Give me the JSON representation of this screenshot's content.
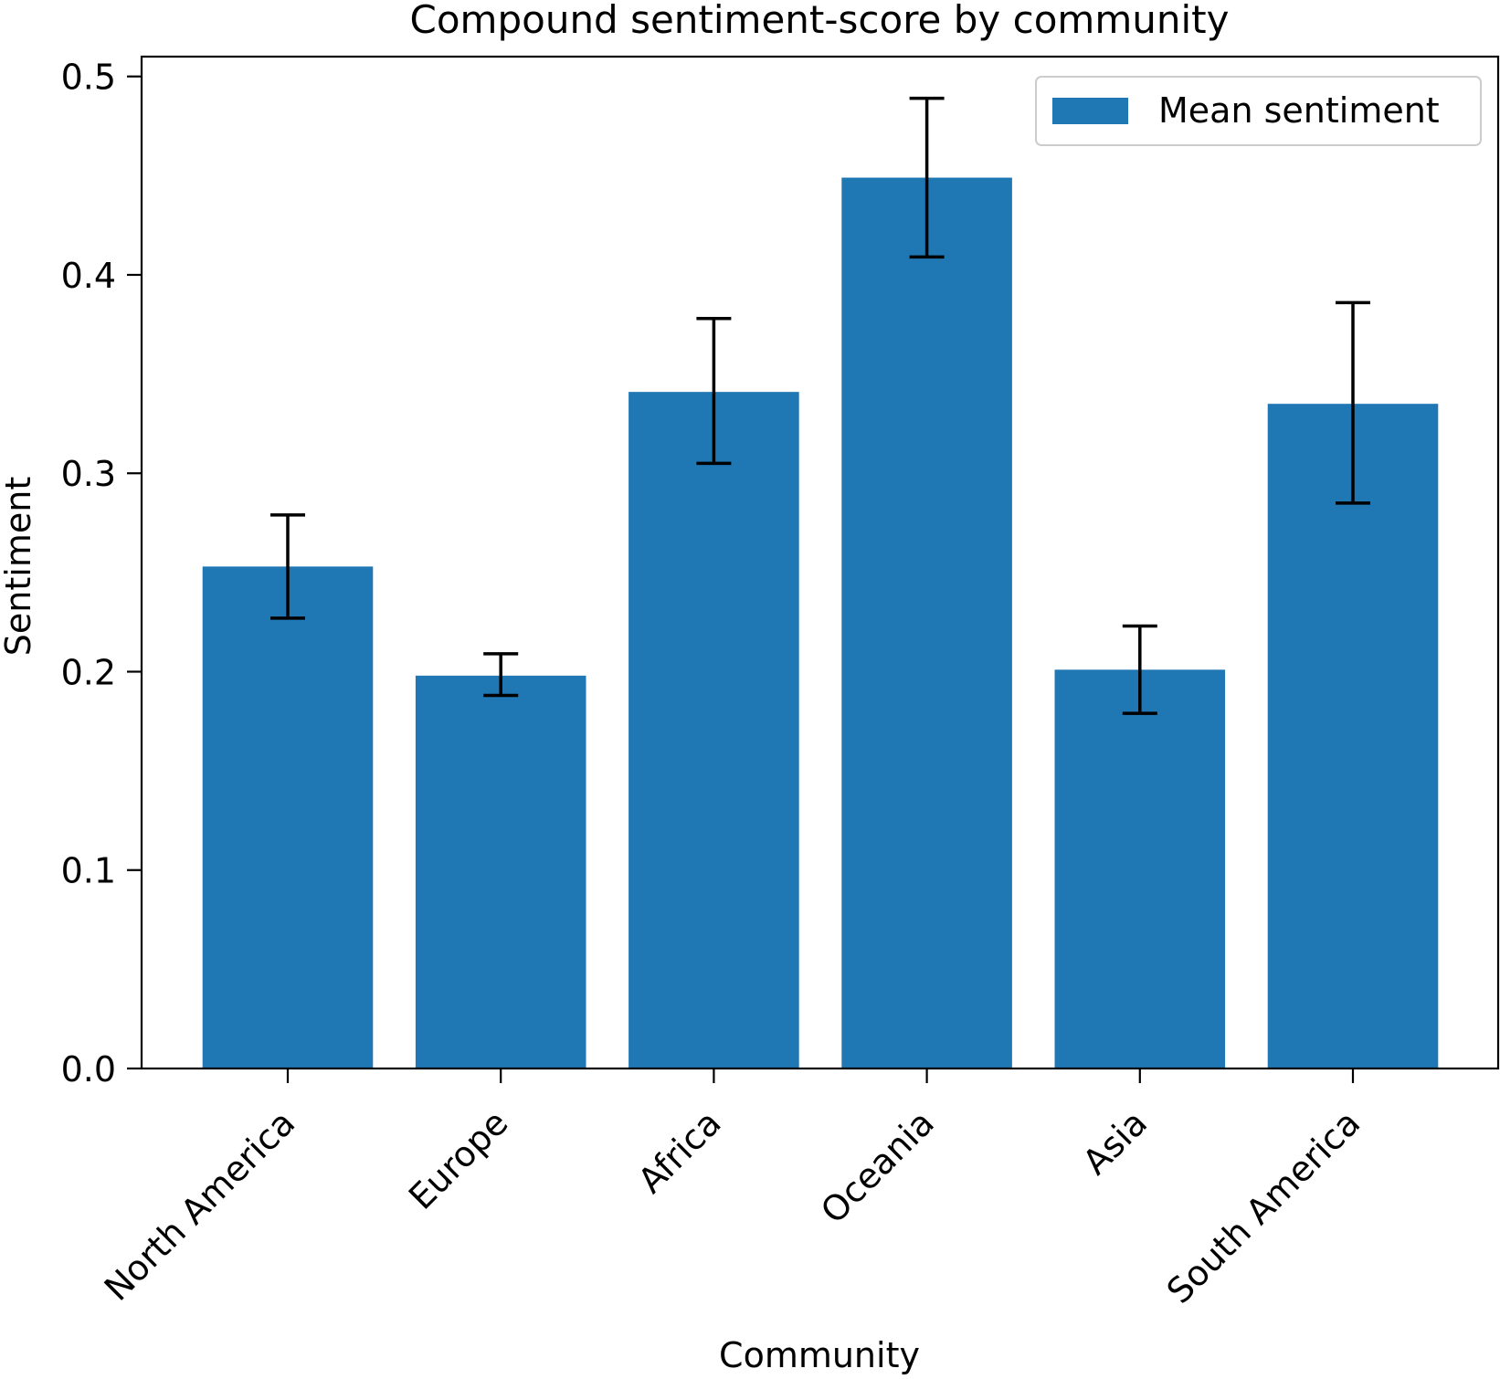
{
  "chart_data": {
    "type": "bar",
    "title": "Compound sentiment-score by community",
    "xlabel": "Community",
    "ylabel": "Sentiment",
    "categories": [
      "North America",
      "Europe",
      "Africa",
      "Oceania",
      "Asia",
      "South America"
    ],
    "series": [
      {
        "name": "Mean sentiment",
        "values": [
          0.253,
          0.198,
          0.341,
          0.449,
          0.201,
          0.335
        ],
        "error_low": [
          0.227,
          0.188,
          0.305,
          0.409,
          0.179,
          0.285
        ],
        "error_high": [
          0.279,
          0.209,
          0.378,
          0.489,
          0.223,
          0.386
        ],
        "color": "#1f77b4"
      }
    ],
    "ylim": [
      0,
      0.51
    ],
    "yticks": [
      0.0,
      0.1,
      0.2,
      0.3,
      0.4,
      0.5
    ],
    "ytick_labels": [
      "0.0",
      "0.1",
      "0.2",
      "0.3",
      "0.4",
      "0.5"
    ],
    "legend_position": "top-right",
    "grid": false,
    "error_bar_color": "#000000"
  }
}
